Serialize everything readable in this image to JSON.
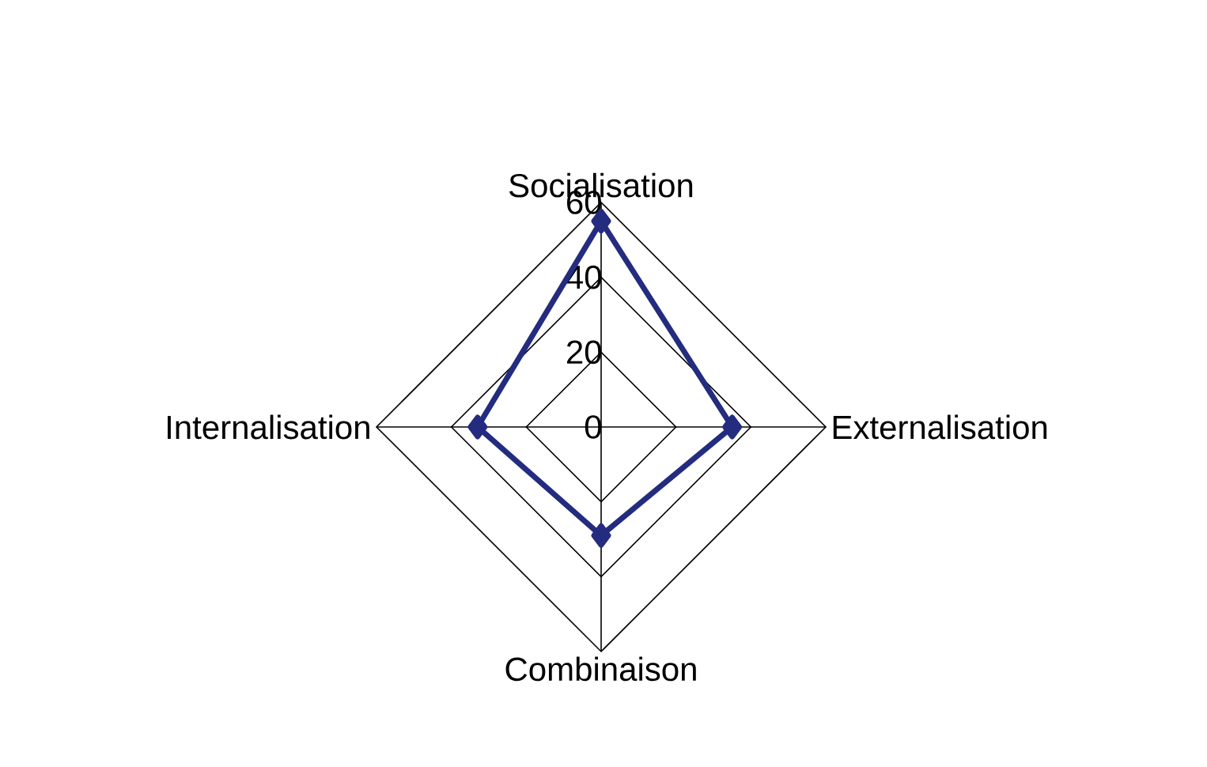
{
  "chart_data": {
    "type": "radar",
    "categories": [
      "Socialisation",
      "Externalisation",
      "Combinaison",
      "Internalisation"
    ],
    "series": [
      {
        "color": "#232c7f",
        "values": [
          55,
          35,
          29,
          33
        ]
      }
    ],
    "ylim": [
      0,
      60
    ],
    "yticks": [
      0,
      20,
      40,
      60
    ],
    "marker": "diamond",
    "grid": true
  }
}
